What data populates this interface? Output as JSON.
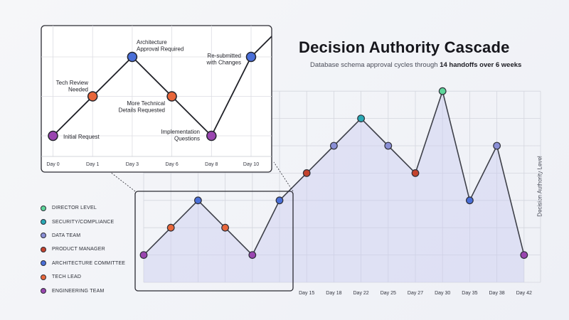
{
  "title": "Decision Authority Cascade",
  "subtitle": {
    "prefix": "Database schema approval cycles through ",
    "highlight": "14 handoffs over 6 weeks"
  },
  "colors": {
    "DIRECTOR LEVEL": "#5dd69a",
    "SECURITY/COMPLIANCE": "#29a9b5",
    "DATA TEAM": "#8a8fd6",
    "PRODUCT MANAGER": "#c4432d",
    "ARCHITECTURE COMMITTEE": "#4a6fd8",
    "TECH LEAD": "#e8663a",
    "ENGINEERING TEAM": "#9a46b0"
  },
  "legend": [
    "DIRECTOR LEVEL",
    "SECURITY/COMPLIANCE",
    "DATA TEAM",
    "PRODUCT MANAGER",
    "ARCHITECTURE COMMITTEE",
    "TECH LEAD",
    "ENGINEERING TEAM"
  ],
  "chart_data": {
    "type": "line",
    "title": "Decision Authority Cascade",
    "ylabel": "Decision Authority Level",
    "xlabel": "",
    "ylim": [
      0,
      7
    ],
    "grid": true,
    "legend_position": "left",
    "categories": [
      "Day 0",
      "Day 1",
      "Day 3",
      "Day 6",
      "Day 8",
      "Day 10",
      "Day 15",
      "Day 18",
      "Day 22",
      "Day 25",
      "Day 27",
      "Day 30",
      "Day 35",
      "Day 38",
      "Day 42"
    ],
    "series": [
      {
        "values": [
          1,
          2,
          3,
          2,
          1,
          3,
          4,
          5,
          6,
          5,
          4,
          7,
          3,
          5,
          1
        ],
        "roles": [
          "ENGINEERING TEAM",
          "TECH LEAD",
          "ARCHITECTURE COMMITTEE",
          "TECH LEAD",
          "ENGINEERING TEAM",
          "ARCHITECTURE COMMITTEE",
          "PRODUCT MANAGER",
          "DATA TEAM",
          "SECURITY/COMPLIANCE",
          "DATA TEAM",
          "PRODUCT MANAGER",
          "DIRECTOR LEVEL",
          "ARCHITECTURE COMMITTEE",
          "DATA TEAM",
          "ENGINEERING TEAM"
        ]
      }
    ],
    "x_tick_labels": [
      "Day 15",
      "Day 18",
      "Day 22",
      "Day 25",
      "Day 27",
      "Day 30",
      "Day 35",
      "Day 38",
      "Day 42"
    ],
    "inset": {
      "categories": [
        "Day 0",
        "Day 1",
        "Day 3",
        "Day 6",
        "Day 8",
        "Day 10"
      ],
      "annotations": [
        "Initial Request",
        "Tech Review\nNeeded",
        "Architecture\nApproval Required",
        "More Technical\nDetails Requested",
        "Implementation\nQuestions",
        "Re-submitted\nwith Changes"
      ]
    }
  }
}
